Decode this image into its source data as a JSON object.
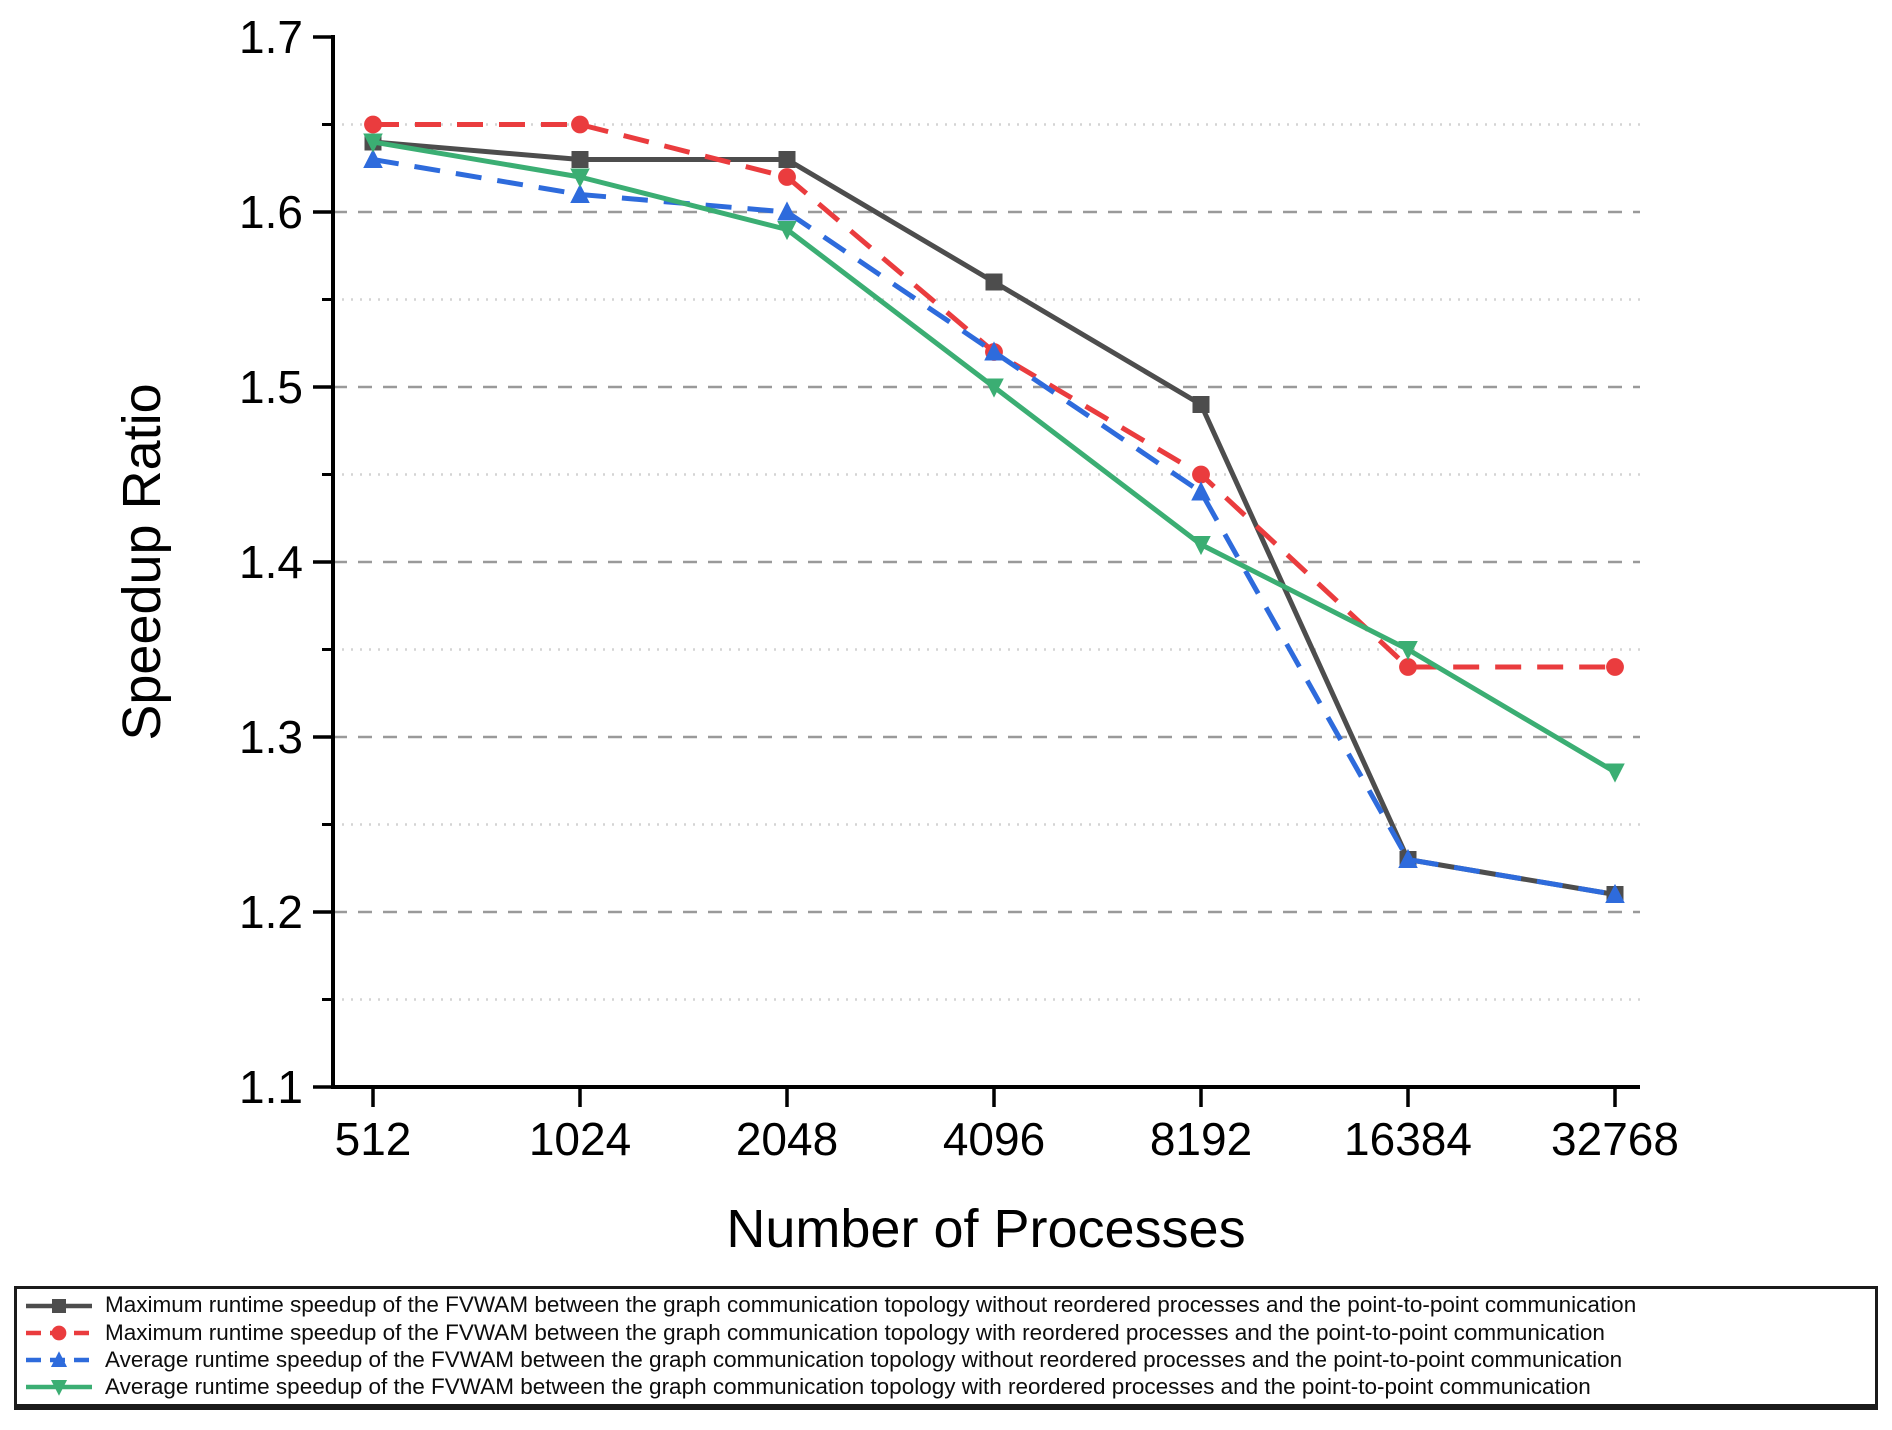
{
  "chart_data": {
    "type": "line",
    "title": "",
    "xlabel": "Number of Processes",
    "ylabel": "Speedup Ratio",
    "categories": [
      "512",
      "1024",
      "2048",
      "4096",
      "8192",
      "16384",
      "32768"
    ],
    "ylim": [
      1.1,
      1.7
    ],
    "yticks": [
      "1.1",
      "1.2",
      "1.3",
      "1.4",
      "1.5",
      "1.6",
      "1.7"
    ],
    "yminor": [
      1.15,
      1.25,
      1.35,
      1.45,
      1.55,
      1.65
    ],
    "grid": {
      "major_style": "dashed",
      "minor_style": "dotted",
      "major_color": "#9a9a9a",
      "minor_color": "#d4d4d4"
    },
    "legend_position": "bottom",
    "series": [
      {
        "name": "Maximum runtime speedup of the FVWAM between the graph communication topology without reordered processes and the point-to-point communication",
        "color": "#4D4D4D",
        "marker": "square",
        "line": "solid",
        "values": [
          1.64,
          1.63,
          1.63,
          1.56,
          1.49,
          1.23,
          1.21
        ]
      },
      {
        "name": "Maximum runtime speedup of the FVWAM between the graph communication topology with reordered processes and the point-to-point communication",
        "color": "#EA3C3E",
        "marker": "circle",
        "line": "dashed",
        "values": [
          1.65,
          1.65,
          1.62,
          1.52,
          1.45,
          1.34,
          1.34
        ]
      },
      {
        "name": "Average runtime speedup of the FVWAM between the graph communication topology without reordered processes and the point-to-point communication",
        "color": "#2E6BDC",
        "marker": "triangle-up",
        "line": "dashed",
        "values": [
          1.63,
          1.61,
          1.6,
          1.52,
          1.44,
          1.23,
          1.21
        ]
      },
      {
        "name": "Average runtime speedup of the FVWAM between the graph communication topology with reordered processes and the point-to-point communication",
        "color": "#3BAE73",
        "marker": "triangle-down",
        "line": "solid",
        "values": [
          1.64,
          1.62,
          1.59,
          1.5,
          1.41,
          1.35,
          1.28
        ]
      }
    ]
  }
}
